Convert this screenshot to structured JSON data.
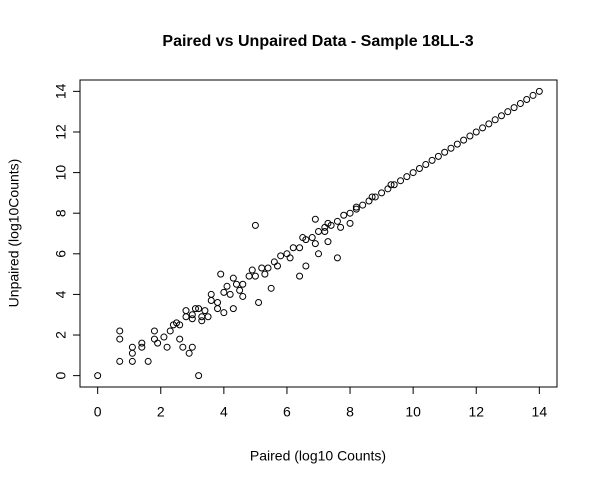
{
  "chart_data": {
    "type": "scatter",
    "title": "Paired vs Unpaired Data - Sample 18LL-3",
    "x_label": "Paired (log10 Counts)",
    "y_label": "Unpaired (log10Counts)",
    "xlim": [
      -0.56,
      14.56
    ],
    "ylim": [
      -0.56,
      14.56
    ],
    "xticks": [
      0,
      2,
      4,
      6,
      8,
      10,
      12,
      14
    ],
    "yticks": [
      0,
      2,
      4,
      6,
      8,
      10,
      12,
      14
    ],
    "color": "#000000",
    "x": [
      0,
      0.7,
      0.7,
      0.7,
      1.1,
      1.1,
      1.1,
      1.4,
      1.4,
      1.6,
      1.8,
      1.8,
      1.9,
      2.1,
      2.2,
      2.3,
      2.5,
      2.6,
      2.7,
      2.9,
      3.0,
      3.2,
      3.0,
      3.1,
      3.3,
      3.5,
      3.9,
      4.3,
      4.6,
      4.3,
      4.0,
      5.0,
      5.1,
      5.5,
      6.4,
      6.9,
      6.6,
      7.2,
      7.0,
      7.6,
      7.3,
      8.2,
      8.0,
      8.7,
      9.3,
      2.4,
      2.6,
      2.8,
      3.0,
      3.2,
      3.4,
      3.6,
      3.8,
      4.0,
      4.2,
      4.4,
      4.6,
      4.8,
      5.0,
      5.2,
      5.4,
      5.6,
      5.8,
      6.0,
      6.2,
      6.4,
      6.6,
      6.8,
      7.0,
      7.2,
      7.4,
      7.6,
      7.8,
      8.0,
      8.2,
      8.4,
      8.6,
      8.8,
      9.0,
      9.2,
      9.4,
      9.6,
      9.8,
      10.0,
      10.2,
      10.4,
      10.6,
      10.8,
      11.0,
      11.2,
      11.4,
      11.6,
      11.8,
      12.0,
      12.2,
      12.4,
      12.6,
      12.8,
      13.0,
      13.2,
      13.4,
      13.6,
      13.8,
      14.0,
      4.1,
      4.5,
      4.9,
      5.3,
      5.7,
      6.1,
      6.5,
      6.9,
      7.3,
      7.7,
      3.6,
      3.8,
      2.8,
      3.3
    ],
    "y": [
      0,
      0.7,
      1.8,
      2.2,
      0.7,
      1.1,
      1.4,
      1.4,
      1.6,
      0.7,
      1.8,
      2.2,
      1.6,
      1.9,
      1.4,
      2.2,
      2.6,
      1.8,
      1.4,
      1.1,
      1.4,
      0,
      3.0,
      3.3,
      2.7,
      2.9,
      5.0,
      4.8,
      3.9,
      3.3,
      3.1,
      7.4,
      3.6,
      4.3,
      4.9,
      7.7,
      5.4,
      7.3,
      6.0,
      5.8,
      6.6,
      8.3,
      7.5,
      8.8,
      9.4,
      2.5,
      2.5,
      2.9,
      2.8,
      3.3,
      3.2,
      3.7,
      3.6,
      4.1,
      4.0,
      4.5,
      4.5,
      4.9,
      4.9,
      5.3,
      5.3,
      5.6,
      5.9,
      6.0,
      6.3,
      6.3,
      6.7,
      6.8,
      7.1,
      7.1,
      7.4,
      7.6,
      7.9,
      8.0,
      8.2,
      8.4,
      8.6,
      8.8,
      9.0,
      9.2,
      9.4,
      9.6,
      9.8,
      10.0,
      10.2,
      10.4,
      10.6,
      10.8,
      11.0,
      11.2,
      11.4,
      11.6,
      11.8,
      12.0,
      12.2,
      12.4,
      12.6,
      12.8,
      13.0,
      13.2,
      13.4,
      13.6,
      13.8,
      14.0,
      4.4,
      4.2,
      5.2,
      5.0,
      5.4,
      5.8,
      6.8,
      6.5,
      7.5,
      7.3,
      4.0,
      3.3,
      3.2,
      2.9
    ]
  }
}
